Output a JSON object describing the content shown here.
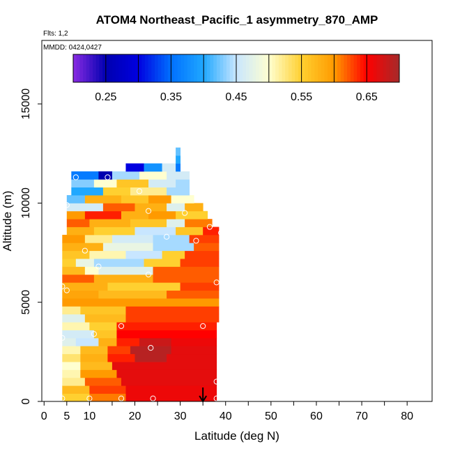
{
  "chart_data": {
    "type": "heatmap",
    "title": "ATOM4 Northeast_Pacific_1 asymmetry_870_AMP",
    "flights_note": "Flts: 1,2",
    "date_note": "MMDD: 0424,0427",
    "xlabel": "Latitude (deg N)",
    "ylabel": "Altitude (m)",
    "xlim": [
      -0.5,
      85.5
    ],
    "ylim": [
      0,
      18200
    ],
    "x_ticks": [
      0,
      5,
      10,
      20,
      30,
      40,
      50,
      60,
      70,
      80
    ],
    "x_tick_labels": [
      "0",
      "5",
      "10",
      "20",
      "30",
      "40",
      "50",
      "60",
      "70",
      "80"
    ],
    "x_minor_ticks": [
      15,
      25,
      35,
      45,
      55,
      65,
      75
    ],
    "y_ticks": [
      0,
      5000,
      10000,
      15000
    ],
    "y_tick_labels": [
      "0",
      "5000",
      "10000",
      "15000"
    ],
    "colorbar": {
      "range": [
        0.2,
        0.7
      ],
      "labels": [
        "0.25",
        "0.35",
        "0.45",
        "0.55",
        "0.65"
      ],
      "label_values": [
        0.25,
        0.35,
        0.45,
        0.55,
        0.65
      ],
      "divisions": [
        0.25,
        0.3,
        0.35,
        0.4,
        0.45,
        0.5,
        0.55,
        0.6,
        0.65
      ],
      "color_stops": [
        {
          "v": 0.2,
          "c": "#8a2be2"
        },
        {
          "v": 0.25,
          "c": "#0000b0"
        },
        {
          "v": 0.3,
          "c": "#0000e0"
        },
        {
          "v": 0.35,
          "c": "#0070ff"
        },
        {
          "v": 0.4,
          "c": "#20a8ff"
        },
        {
          "v": 0.45,
          "c": "#c8e6ff"
        },
        {
          "v": 0.5,
          "c": "#ffffd0"
        },
        {
          "v": 0.55,
          "c": "#ffd030"
        },
        {
          "v": 0.6,
          "c": "#ff9a00"
        },
        {
          "v": 0.65,
          "c": "#ff0000"
        },
        {
          "v": 0.7,
          "c": "#a52a2a"
        }
      ]
    },
    "grid": false,
    "alt_bin_m": 400,
    "rows": [
      {
        "alt": 0,
        "segments": [
          [
            4,
            10,
            0.55
          ],
          [
            10,
            18,
            0.61
          ],
          [
            18,
            38,
            0.66
          ]
        ]
      },
      {
        "alt": 400,
        "segments": [
          [
            4,
            10,
            0.57
          ],
          [
            10,
            18,
            0.63
          ],
          [
            18,
            38,
            0.66
          ]
        ]
      },
      {
        "alt": 800,
        "segments": [
          [
            4,
            9,
            0.52
          ],
          [
            9,
            17,
            0.62
          ],
          [
            17,
            38,
            0.665
          ]
        ]
      },
      {
        "alt": 1200,
        "segments": [
          [
            4,
            8,
            0.51
          ],
          [
            8,
            16,
            0.6
          ],
          [
            16,
            38,
            0.665
          ]
        ]
      },
      {
        "alt": 1600,
        "segments": [
          [
            4,
            8,
            0.5
          ],
          [
            8,
            15,
            0.57
          ],
          [
            15,
            38,
            0.665
          ]
        ]
      },
      {
        "alt": 2000,
        "segments": [
          [
            4,
            8,
            0.53
          ],
          [
            8,
            14,
            0.58
          ],
          [
            14,
            20,
            0.64
          ],
          [
            20,
            27,
            0.69
          ],
          [
            27,
            38,
            0.665
          ]
        ]
      },
      {
        "alt": 2400,
        "segments": [
          [
            4,
            8,
            0.51
          ],
          [
            8,
            14,
            0.57
          ],
          [
            14,
            19,
            0.63
          ],
          [
            19,
            28,
            0.69
          ],
          [
            28,
            38,
            0.665
          ]
        ]
      },
      {
        "alt": 2800,
        "segments": [
          [
            4,
            7,
            0.47
          ],
          [
            7,
            12,
            0.45
          ],
          [
            12,
            16,
            0.58
          ],
          [
            16,
            21,
            0.64
          ],
          [
            21,
            28,
            0.68
          ],
          [
            28,
            38,
            0.66
          ]
        ]
      },
      {
        "alt": 3200,
        "segments": [
          [
            4,
            11,
            0.46
          ],
          [
            11,
            16,
            0.56
          ],
          [
            16,
            38,
            0.65
          ]
        ]
      },
      {
        "alt": 3600,
        "segments": [
          [
            4,
            10,
            0.51
          ],
          [
            10,
            16,
            0.55
          ],
          [
            16,
            38,
            0.64
          ]
        ]
      },
      {
        "alt": 4000,
        "segments": [
          [
            4,
            9,
            0.47
          ],
          [
            9,
            18,
            0.57
          ],
          [
            18,
            38.5,
            0.63
          ]
        ]
      },
      {
        "alt": 4400,
        "segments": [
          [
            4,
            8,
            0.52
          ],
          [
            8,
            18,
            0.56
          ],
          [
            18,
            38.5,
            0.63
          ]
        ]
      },
      {
        "alt": 4800,
        "segments": [
          [
            4,
            38.5,
            0.6
          ]
        ]
      },
      {
        "alt": 5200,
        "segments": [
          [
            4,
            12,
            0.59
          ],
          [
            12,
            27,
            0.57
          ],
          [
            27,
            38.5,
            0.62
          ]
        ]
      },
      {
        "alt": 5600,
        "segments": [
          [
            4,
            14,
            0.58
          ],
          [
            14,
            30,
            0.55
          ],
          [
            30,
            38.5,
            0.63
          ]
        ]
      },
      {
        "alt": 6000,
        "segments": [
          [
            4,
            11,
            0.62
          ],
          [
            11,
            24,
            0.58
          ],
          [
            24,
            38.5,
            0.62
          ]
        ]
      },
      {
        "alt": 6400,
        "segments": [
          [
            4,
            9,
            0.57
          ],
          [
            9,
            12,
            0.5
          ],
          [
            12,
            24,
            0.47
          ],
          [
            24,
            38.5,
            0.62
          ]
        ]
      },
      {
        "alt": 6800,
        "segments": [
          [
            4,
            7,
            0.55
          ],
          [
            7,
            11,
            0.48
          ],
          [
            11,
            22,
            0.44
          ],
          [
            22,
            30,
            0.55
          ],
          [
            30,
            38.5,
            0.63
          ]
        ]
      },
      {
        "alt": 7200,
        "segments": [
          [
            4,
            10,
            0.56
          ],
          [
            10,
            18,
            0.51
          ],
          [
            18,
            26,
            0.45
          ],
          [
            26,
            31,
            0.55
          ],
          [
            31,
            38.5,
            0.63
          ]
        ]
      },
      {
        "alt": 7600,
        "segments": [
          [
            4,
            13,
            0.58
          ],
          [
            13,
            24,
            0.48
          ],
          [
            24,
            33,
            0.44
          ],
          [
            33,
            38.5,
            0.62
          ]
        ]
      },
      {
        "alt": 8000,
        "segments": [
          [
            4,
            9,
            0.6
          ],
          [
            9,
            15,
            0.52
          ],
          [
            15,
            24,
            0.46
          ],
          [
            24,
            32,
            0.44
          ],
          [
            32,
            38.5,
            0.63
          ]
        ]
      },
      {
        "alt": 8400,
        "segments": [
          [
            5,
            11,
            0.58
          ],
          [
            11,
            20,
            0.55
          ],
          [
            20,
            29,
            0.45
          ],
          [
            29,
            35,
            0.56
          ],
          [
            35,
            38.5,
            0.64
          ]
        ]
      },
      {
        "alt": 8800,
        "segments": [
          [
            5,
            10,
            0.62
          ],
          [
            10,
            19,
            0.58
          ],
          [
            19,
            27,
            0.56
          ],
          [
            27,
            31,
            0.47
          ],
          [
            31,
            37,
            0.61
          ]
        ]
      },
      {
        "alt": 9200,
        "segments": [
          [
            5,
            9,
            0.6
          ],
          [
            9,
            17,
            0.64
          ],
          [
            17,
            23,
            0.58
          ],
          [
            23,
            29,
            0.6
          ],
          [
            29,
            36,
            0.55
          ]
        ]
      },
      {
        "alt": 9600,
        "segments": [
          [
            5,
            13,
            0.46
          ],
          [
            13,
            20,
            0.62
          ],
          [
            20,
            27,
            0.58
          ],
          [
            27,
            31,
            0.47
          ],
          [
            31,
            35,
            0.58
          ]
        ]
      },
      {
        "alt": 10000,
        "segments": [
          [
            5,
            9,
            0.42
          ],
          [
            9,
            17,
            0.58
          ],
          [
            17,
            23,
            0.56
          ],
          [
            23,
            28,
            0.6
          ],
          [
            28,
            33,
            0.5
          ]
        ]
      },
      {
        "alt": 10400,
        "segments": [
          [
            6,
            13,
            0.4
          ],
          [
            13,
            19,
            0.55
          ],
          [
            19,
            27,
            0.52
          ],
          [
            27,
            32,
            0.44
          ]
        ]
      },
      {
        "alt": 10800,
        "segments": [
          [
            6,
            11,
            0.43
          ],
          [
            11,
            16,
            0.5
          ],
          [
            16,
            23,
            0.56
          ],
          [
            23,
            29,
            0.46
          ],
          [
            29,
            32,
            0.44
          ]
        ]
      },
      {
        "alt": 11200,
        "segments": [
          [
            6,
            12,
            0.36
          ],
          [
            12,
            15,
            0.25
          ],
          [
            15,
            21,
            0.44
          ],
          [
            21,
            27,
            0.5
          ],
          [
            27,
            32,
            0.46
          ]
        ]
      },
      {
        "alt": 11600,
        "segments": [
          [
            18,
            22,
            0.3
          ],
          [
            22,
            26,
            0.38
          ],
          [
            26,
            29,
            0.46
          ],
          [
            29,
            30,
            0.36
          ]
        ]
      },
      {
        "alt": 12000,
        "segments": [
          [
            29,
            30,
            0.4
          ]
        ]
      },
      {
        "alt": 12400,
        "segments": [
          [
            29,
            30,
            0.42
          ]
        ]
      }
    ],
    "sample_points": [
      {
        "lat": 4,
        "alt": 150
      },
      {
        "lat": 10,
        "alt": 150
      },
      {
        "lat": 17,
        "alt": 150
      },
      {
        "lat": 24,
        "alt": 150
      },
      {
        "lat": 38,
        "alt": 150
      },
      {
        "lat": 38,
        "alt": 1000
      },
      {
        "lat": 23.5,
        "alt": 2700
      },
      {
        "lat": 11,
        "alt": 3400
      },
      {
        "lat": 4,
        "alt": 3200
      },
      {
        "lat": 17,
        "alt": 3800
      },
      {
        "lat": 35,
        "alt": 3800
      },
      {
        "lat": 5,
        "alt": 5600
      },
      {
        "lat": 4,
        "alt": 5800
      },
      {
        "lat": 38,
        "alt": 6000
      },
      {
        "lat": 23,
        "alt": 6400
      },
      {
        "lat": 12,
        "alt": 6800
      },
      {
        "lat": 9,
        "alt": 7600
      },
      {
        "lat": 33.5,
        "alt": 8100
      },
      {
        "lat": 27,
        "alt": 8300
      },
      {
        "lat": 36.5,
        "alt": 8800
      },
      {
        "lat": 39,
        "alt": 8500
      },
      {
        "lat": 23,
        "alt": 9600
      },
      {
        "lat": 31,
        "alt": 9500
      },
      {
        "lat": 5,
        "alt": 9900
      },
      {
        "lat": 21,
        "alt": 10600
      },
      {
        "lat": 7,
        "alt": 11300
      },
      {
        "lat": 14,
        "alt": 11300
      }
    ],
    "arrow_marker": {
      "lat": 35,
      "label": ""
    }
  }
}
